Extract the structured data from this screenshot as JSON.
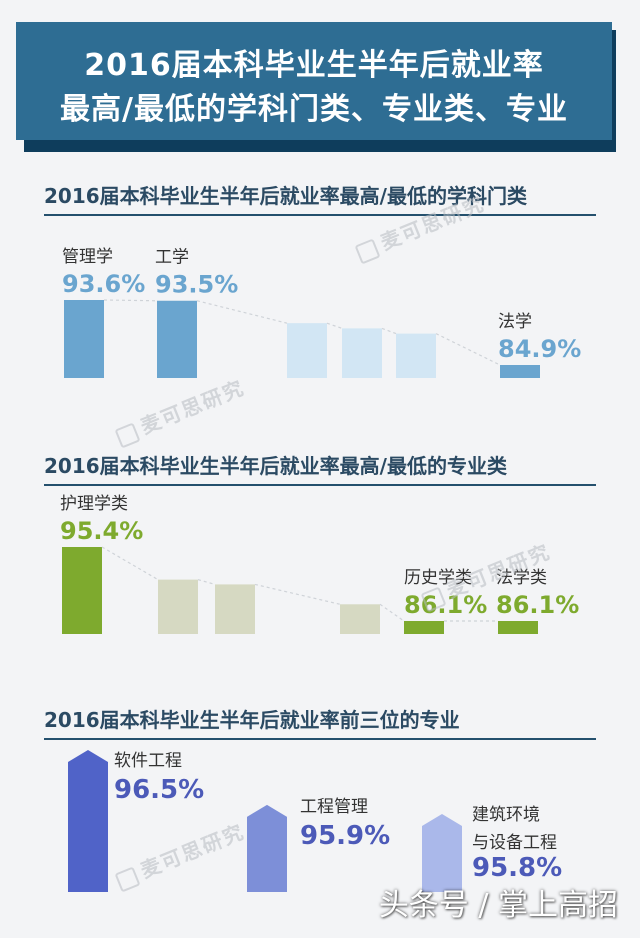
{
  "header": {
    "line1": "2016届本科毕业生半年后就业率",
    "line2": "最高/最低的学科门类、专业类、专业"
  },
  "watermark_text": "麦可思研究",
  "footer_watermark": "头条号 / 掌上高招",
  "chart_data": [
    {
      "type": "bar",
      "title": "2016届本科毕业生半年后就业率最高/最低的学科门类",
      "categories": [
        "管理学",
        "工学",
        "",
        "",
        "",
        "法学"
      ],
      "values": [
        93.6,
        93.5,
        90.5,
        89.8,
        89.1,
        84.9
      ],
      "value_labels": [
        "93.6%",
        "93.5%",
        "",
        "",
        "",
        "84.9%"
      ],
      "colors": {
        "highlight": "#6aa5cf",
        "muted": "#d2e6f4",
        "label": "#6aa5cf"
      },
      "highlight": [
        true,
        true,
        false,
        false,
        false,
        true
      ]
    },
    {
      "type": "bar",
      "title": "2016届本科毕业生半年后就业率最高/最低的专业类",
      "categories": [
        "护理学类",
        "",
        "",
        "",
        "历史学类",
        "法学类"
      ],
      "values": [
        95.4,
        91.3,
        90.7,
        88.2,
        86.1,
        86.1
      ],
      "value_labels": [
        "95.4%",
        "",
        "",
        "",
        "86.1%",
        "86.1%"
      ],
      "colors": {
        "highlight": "#7eaa2e",
        "muted": "#d6d9c2",
        "label": "#7eaa2e"
      },
      "highlight": [
        true,
        false,
        false,
        false,
        true,
        true
      ]
    },
    {
      "type": "bar",
      "title": "2016届本科毕业生半年后就业率前三位的专业",
      "categories": [
        "软件工程",
        "工程管理",
        "建筑环境与设备工程"
      ],
      "value_labels": [
        "96.5%",
        "95.9%",
        "95.8%"
      ],
      "values": [
        96.5,
        95.9,
        95.8
      ],
      "colors": [
        "#5063c8",
        "#7d8fd8",
        "#aab8ea"
      ],
      "label_color": "#4c5ab8"
    }
  ]
}
